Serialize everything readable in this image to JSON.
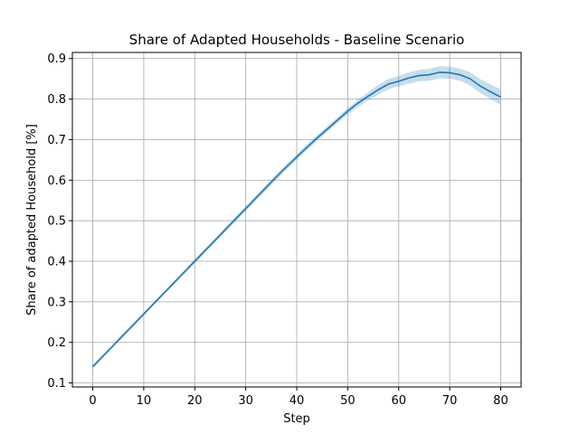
{
  "chart_data": {
    "type": "line",
    "title": "Share of Adapted Households - Baseline Scenario",
    "xlabel": "Step",
    "ylabel": "Share of adapted Household [%]",
    "xlim": [
      -4,
      84
    ],
    "ylim": [
      0.09,
      0.915
    ],
    "xticks": [
      0,
      10,
      20,
      30,
      40,
      50,
      60,
      70,
      80
    ],
    "yticks": [
      0.1,
      0.2,
      0.3,
      0.4,
      0.5,
      0.6,
      0.7,
      0.8,
      0.9
    ],
    "xtick_labels": [
      "0",
      "10",
      "20",
      "30",
      "40",
      "50",
      "60",
      "70",
      "80"
    ],
    "ytick_labels": [
      "0.1",
      "0.2",
      "0.3",
      "0.4",
      "0.5",
      "0.6",
      "0.7",
      "0.8",
      "0.9"
    ],
    "grid": true,
    "legend": "none",
    "colors": {
      "line": "#1f77b4",
      "band": "#1f77b4",
      "grid": "#b0b0b0",
      "axis": "#000000"
    },
    "series": [
      {
        "x": [
          0,
          2,
          4,
          6,
          8,
          10,
          12,
          14,
          16,
          18,
          20,
          22,
          24,
          26,
          28,
          30,
          32,
          34,
          36,
          38,
          40,
          42,
          44,
          46,
          48,
          50,
          52,
          54,
          56,
          58,
          60,
          62,
          64,
          66,
          68,
          70,
          72,
          74,
          76,
          78,
          80
        ],
        "values": [
          0.14,
          0.166,
          0.192,
          0.218,
          0.244,
          0.27,
          0.296,
          0.322,
          0.348,
          0.374,
          0.4,
          0.426,
          0.452,
          0.478,
          0.504,
          0.53,
          0.556,
          0.582,
          0.608,
          0.633,
          0.657,
          0.681,
          0.704,
          0.726,
          0.748,
          0.77,
          0.79,
          0.807,
          0.823,
          0.837,
          0.844,
          0.852,
          0.858,
          0.86,
          0.866,
          0.865,
          0.86,
          0.85,
          0.832,
          0.818,
          0.805
        ],
        "lower": [
          0.136,
          0.162,
          0.188,
          0.214,
          0.24,
          0.266,
          0.292,
          0.318,
          0.344,
          0.369,
          0.395,
          0.421,
          0.447,
          0.472,
          0.498,
          0.524,
          0.55,
          0.575,
          0.601,
          0.626,
          0.65,
          0.674,
          0.697,
          0.719,
          0.741,
          0.762,
          0.781,
          0.797,
          0.811,
          0.824,
          0.831,
          0.838,
          0.844,
          0.845,
          0.851,
          0.85,
          0.845,
          0.834,
          0.815,
          0.8,
          0.786
        ],
        "upper": [
          0.144,
          0.17,
          0.196,
          0.222,
          0.248,
          0.274,
          0.3,
          0.326,
          0.352,
          0.379,
          0.405,
          0.431,
          0.457,
          0.484,
          0.51,
          0.536,
          0.562,
          0.589,
          0.615,
          0.64,
          0.664,
          0.688,
          0.711,
          0.733,
          0.755,
          0.778,
          0.799,
          0.817,
          0.835,
          0.85,
          0.857,
          0.866,
          0.872,
          0.875,
          0.881,
          0.88,
          0.875,
          0.866,
          0.849,
          0.836,
          0.824
        ]
      }
    ]
  }
}
